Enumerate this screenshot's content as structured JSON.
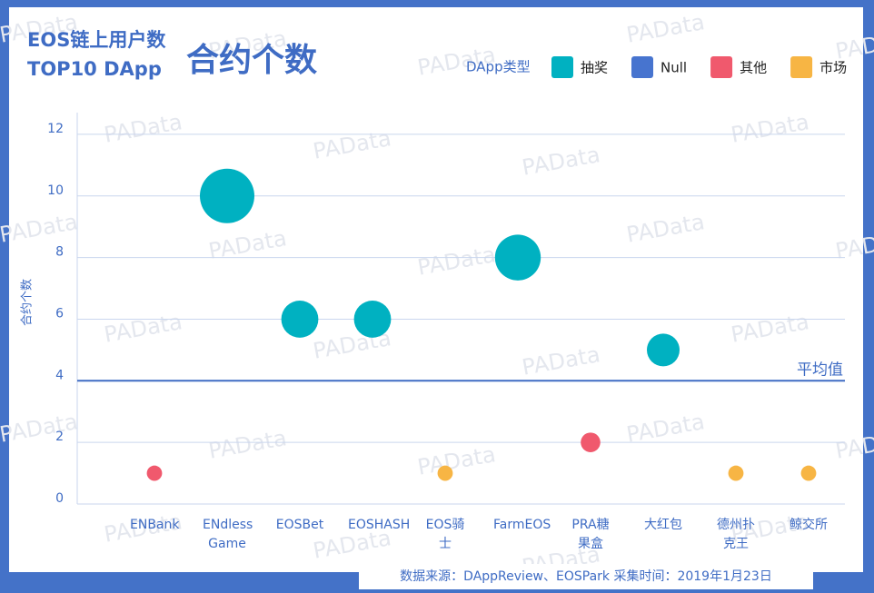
{
  "chart_data": {
    "type": "bubble",
    "title_line1": "EOS链上用户数",
    "title_line2": "TOP10 DApp",
    "title_main": "合约个数",
    "y_label": "合约个数",
    "legend_title": "DApp类型",
    "categories": [
      "ENBank",
      "ENdless Game",
      "EOSBet",
      "EOSHASH",
      "EOS骑士",
      "FarmEOS",
      "PRA糖果盒",
      "大红包",
      "德州扑克王",
      "鲸交所"
    ],
    "series": [
      {
        "name": "抽奖",
        "color": "#00b1c1",
        "values": [
          null,
          10,
          6,
          6,
          null,
          8,
          null,
          5,
          null,
          null
        ]
      },
      {
        "name": "Null",
        "color": "#4774cf",
        "values": [
          null,
          null,
          null,
          null,
          null,
          null,
          null,
          null,
          null,
          null
        ]
      },
      {
        "name": "其他",
        "color": "#f0596d",
        "values": [
          1,
          null,
          null,
          null,
          null,
          null,
          2,
          null,
          null,
          null
        ]
      },
      {
        "name": "市场",
        "color": "#f7b544",
        "values": [
          null,
          null,
          null,
          null,
          1,
          null,
          null,
          null,
          1,
          1
        ]
      }
    ],
    "average": {
      "value": 4,
      "label": "平均值",
      "color": "#3f6cc4"
    },
    "ylim": [
      0,
      13
    ],
    "yticks": [
      0,
      2,
      4,
      6,
      8,
      10,
      12
    ],
    "grid": true,
    "source": "数据来源：DAppReview、EOSPark  采集时间：2019年1月23日",
    "watermark": "PAData"
  }
}
